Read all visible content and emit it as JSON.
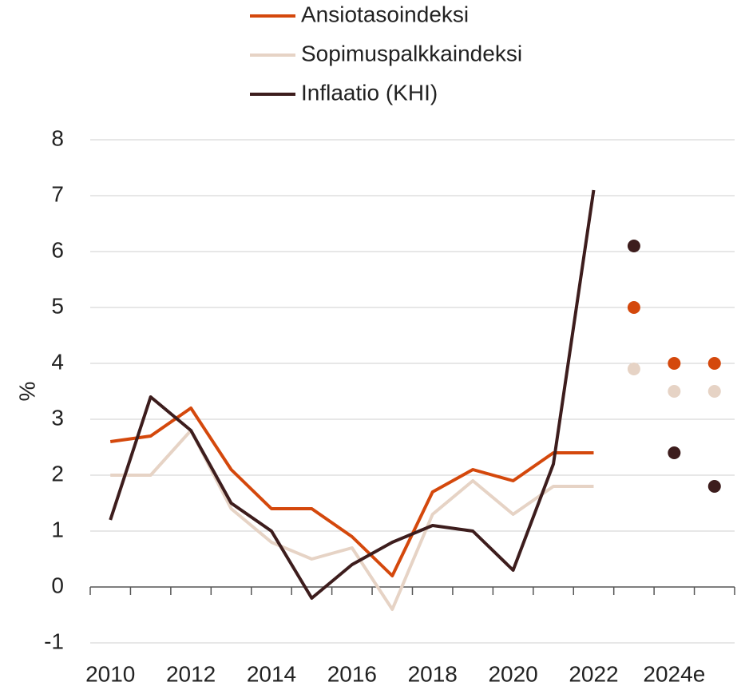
{
  "chart_data": {
    "type": "line",
    "y_label": "%",
    "categories": [
      "2010",
      null,
      "2012",
      null,
      "2014",
      null,
      "2016",
      null,
      "2018",
      null,
      "2020",
      null,
      "2022",
      null,
      "2024e",
      null
    ],
    "series": [
      {
        "name": "Ansiotasoindeksi",
        "color": "#d4480c",
        "values": [
          2.6,
          2.7,
          3.2,
          2.1,
          1.4,
          1.4,
          0.9,
          0.2,
          1.7,
          2.1,
          1.9,
          2.4,
          2.4,
          null,
          null,
          null
        ],
        "forecast": [
          null,
          null,
          null,
          null,
          null,
          null,
          null,
          null,
          null,
          null,
          null,
          null,
          null,
          5.0,
          4.0,
          4.0
        ]
      },
      {
        "name": "Sopimuspalkkaindeksi",
        "color": "#e6d3c5",
        "values": [
          2.0,
          2.0,
          2.8,
          1.4,
          0.8,
          0.5,
          0.7,
          -0.4,
          1.3,
          1.9,
          1.3,
          1.8,
          1.8,
          null,
          null,
          null
        ],
        "forecast": [
          null,
          null,
          null,
          null,
          null,
          null,
          null,
          null,
          null,
          null,
          null,
          null,
          null,
          3.9,
          3.5,
          3.5
        ]
      },
      {
        "name": "Inflaatio (KHI)",
        "color": "#3d1d1d",
        "values": [
          1.2,
          3.4,
          2.8,
          1.5,
          1.0,
          -0.2,
          0.4,
          0.8,
          1.1,
          1.0,
          0.3,
          2.2,
          7.1,
          null,
          null,
          null
        ],
        "forecast": [
          null,
          null,
          null,
          null,
          null,
          null,
          null,
          null,
          null,
          null,
          null,
          null,
          null,
          6.1,
          2.4,
          1.8
        ]
      }
    ],
    "ylim": [
      -1,
      8
    ],
    "yticks": [
      -1,
      0,
      1,
      2,
      3,
      4,
      5,
      6,
      7,
      8
    ],
    "grid": true
  }
}
